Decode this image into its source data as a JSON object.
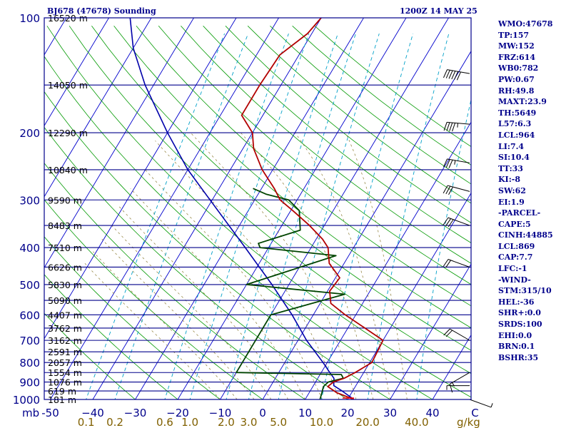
{
  "header": {
    "station": "BJ678 (47678) Sounding",
    "time": "1200Z 14 MAY 25"
  },
  "stats": [
    "WMO:47678",
    "TP:157",
    "MW:152",
    "FRZ:614",
    "WB0:782",
    "PW:0.67",
    "RH:49.8",
    "MAXT:23.9",
    "TH:5649",
    "L57:6.3",
    "LCL:964",
    "LI:7.4",
    "SI:10.4",
    "TT:33",
    "KI:-8",
    "SW:62",
    "EI:1.9",
    "-PARCEL-",
    "CAPE:5",
    "CINH:44885",
    "LCL:869",
    "CAP:7.7",
    "LFC:-1",
    "-WIND-",
    "STM:315/10",
    "HEL:-36",
    "SHR+:0.0",
    "SRDS:100",
    "EHI:0.0",
    "BRN:0.1",
    "BSHR:35"
  ],
  "colors": {
    "isobar": "#00008b",
    "temperature": "#b20000",
    "dewpoint": "#004400",
    "parcel": "#0000aa",
    "dry_adiabat": "#009900",
    "isotherm": "#0000cc",
    "mixing_ratio": "#00a0c8",
    "label_text": "#00008b",
    "ratio_text": "#806000"
  },
  "chart_data": {
    "type": "line",
    "diagram": "skew-t log-p",
    "xlim": [
      -50,
      50
    ],
    "ylim": [
      1000,
      100
    ],
    "y_scale": "log",
    "pressure_ticks": [
      {
        "p": 100,
        "label": "100"
      },
      {
        "p": 200,
        "label": "200"
      },
      {
        "p": 300,
        "label": "300"
      },
      {
        "p": 400,
        "label": "400"
      },
      {
        "p": 500,
        "label": "500"
      },
      {
        "p": 600,
        "label": "600"
      },
      {
        "p": 700,
        "label": "700"
      },
      {
        "p": 800,
        "label": "800"
      },
      {
        "p": 900,
        "label": "900"
      },
      {
        "p": 1000,
        "label": "1000"
      }
    ],
    "height_labels": [
      {
        "p": 100,
        "label": "16520 m"
      },
      {
        "p": 150,
        "label": "14050 m"
      },
      {
        "p": 200,
        "label": "12290 m"
      },
      {
        "p": 250,
        "label": "10840 m"
      },
      {
        "p": 300,
        "label": "9590 m"
      },
      {
        "p": 350,
        "label": "8483 m"
      },
      {
        "p": 400,
        "label": "7510 m"
      },
      {
        "p": 450,
        "label": "6626 m"
      },
      {
        "p": 500,
        "label": "5830 m"
      },
      {
        "p": 550,
        "label": "5090 m"
      },
      {
        "p": 600,
        "label": "4407 m"
      },
      {
        "p": 650,
        "label": "3762 m"
      },
      {
        "p": 700,
        "label": "3162 m"
      },
      {
        "p": 750,
        "label": "2591 m"
      },
      {
        "p": 800,
        "label": "2057 m"
      },
      {
        "p": 850,
        "label": "1554 m"
      },
      {
        "p": 900,
        "label": "1076 m"
      },
      {
        "p": 950,
        "label": "619 m"
      },
      {
        "p": 1000,
        "label": "181 m"
      }
    ],
    "temperature_ticks": [
      {
        "t": -50,
        "label": "-50"
      },
      {
        "t": -40,
        "label": "−40"
      },
      {
        "t": -30,
        "label": "−30"
      },
      {
        "t": -20,
        "label": "−20"
      },
      {
        "t": -10,
        "label": "−10"
      },
      {
        "t": 0,
        "label": "0"
      },
      {
        "t": 10,
        "label": "10"
      },
      {
        "t": 20,
        "label": "20"
      },
      {
        "t": 30,
        "label": "30"
      },
      {
        "t": 40,
        "label": "40"
      },
      {
        "t": 50,
        "label": "C"
      }
    ],
    "xlabel_prefix": "mb",
    "mixing_ratios": [
      {
        "w": 0.1,
        "label": "0.1"
      },
      {
        "w": 0.2,
        "label": "0.2"
      },
      {
        "w": 0.6,
        "label": "0.6"
      },
      {
        "w": 1.0,
        "label": "1.0"
      },
      {
        "w": 2.0,
        "label": "2.0"
      },
      {
        "w": 3.0,
        "label": "3.0"
      },
      {
        "w": 5.0,
        "label": "5.0"
      },
      {
        "w": 10.0,
        "label": "10.0"
      },
      {
        "w": 20.0,
        "label": "20.0"
      },
      {
        "w": 40.0,
        "label": "40.0"
      }
    ],
    "mixing_ratio_unit": "g/kg",
    "temperature_profile": [
      [
        1000,
        21.5
      ],
      [
        960,
        16.5
      ],
      [
        925,
        13.5
      ],
      [
        900,
        14.2
      ],
      [
        880,
        16.2
      ],
      [
        850,
        18.0
      ],
      [
        800,
        20.5
      ],
      [
        700,
        20.0
      ],
      [
        650,
        14.0
      ],
      [
        600,
        7.5
      ],
      [
        560,
        2.5
      ],
      [
        520,
        0.5
      ],
      [
        480,
        1.0
      ],
      [
        440,
        -3.5
      ],
      [
        400,
        -6.0
      ],
      [
        380,
        -8.5
      ],
      [
        350,
        -13.5
      ],
      [
        320,
        -19.5
      ],
      [
        300,
        -24.0
      ],
      [
        280,
        -27.0
      ],
      [
        250,
        -32.5
      ],
      [
        220,
        -37.5
      ],
      [
        200,
        -40.0
      ],
      [
        180,
        -45.0
      ],
      [
        150,
        -45.0
      ],
      [
        125,
        -44.5
      ],
      [
        110,
        -41.0
      ],
      [
        100,
        -40.0
      ]
    ],
    "dewpoint_profile": [
      [
        1000,
        13.5
      ],
      [
        960,
        13.0
      ],
      [
        925,
        12.5
      ],
      [
        900,
        13.0
      ],
      [
        880,
        16.0
      ],
      [
        860,
        15.0
      ],
      [
        850,
        -10.0
      ],
      [
        800,
        -10.0
      ],
      [
        700,
        -10.0
      ],
      [
        600,
        -10.0
      ],
      [
        530,
        4.5
      ],
      [
        500,
        -20.0
      ],
      [
        420,
        -3.0
      ],
      [
        400,
        -22.0
      ],
      [
        390,
        -23.0
      ],
      [
        360,
        -15.0
      ],
      [
        320,
        -18.0
      ],
      [
        300,
        -22.0
      ],
      [
        290,
        -28.0
      ],
      [
        280,
        -32.0
      ]
    ],
    "parcel_profile": [
      [
        1000,
        21.5
      ],
      [
        950,
        17.5
      ],
      [
        920,
        14.8
      ],
      [
        880,
        13.8
      ],
      [
        850,
        12.0
      ],
      [
        800,
        9.0
      ],
      [
        700,
        2.0
      ],
      [
        600,
        -5.0
      ],
      [
        500,
        -14.0
      ],
      [
        400,
        -25.5
      ],
      [
        300,
        -40.5
      ],
      [
        250,
        -50.0
      ],
      [
        200,
        -60.0
      ],
      [
        150,
        -72.0
      ],
      [
        120,
        -80.0
      ],
      [
        100,
        -85.0
      ]
    ],
    "wind_barbs": [
      {
        "p": 140,
        "dir": 280,
        "kt": 60
      },
      {
        "p": 190,
        "dir": 275,
        "kt": 45
      },
      {
        "p": 240,
        "dir": 280,
        "kt": 35
      },
      {
        "p": 285,
        "dir": 285,
        "kt": 30
      },
      {
        "p": 350,
        "dir": 290,
        "kt": 30
      },
      {
        "p": 450,
        "dir": 290,
        "kt": 20
      },
      {
        "p": 700,
        "dir": 300,
        "kt": 20
      },
      {
        "p": 850,
        "dir": 240,
        "kt": 15
      },
      {
        "p": 920,
        "dir": 270,
        "kt": 8
      },
      {
        "p": 1000,
        "dir": 110,
        "kt": 5
      }
    ]
  }
}
